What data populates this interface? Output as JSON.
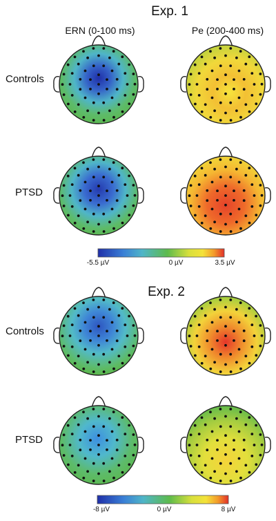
{
  "columns": [
    "ERN (0-100 ms)",
    "Pe (200-400 ms)"
  ],
  "experiments": [
    {
      "title": "Exp. 1",
      "rows": [
        "Controls",
        "PTSD"
      ],
      "colorbar": {
        "min_label": "-5.5 µV",
        "mid_label": "0 µV",
        "max_label": "3.5 µV",
        "min": -5.5,
        "max": 3.5
      }
    },
    {
      "title": "Exp. 2",
      "rows": [
        "Controls",
        "PTSD"
      ],
      "colorbar": {
        "min_label": "-8 µV",
        "mid_label": "0 µV",
        "max_label": "8 µV",
        "min": -8,
        "max": 8
      }
    }
  ],
  "colors": {
    "colormap": [
      "#1f2fa8",
      "#3a7fd6",
      "#4fb5c8",
      "#5dbb4c",
      "#b6d43e",
      "#f4e23a",
      "#f39a2a",
      "#e2302a"
    ]
  }
}
